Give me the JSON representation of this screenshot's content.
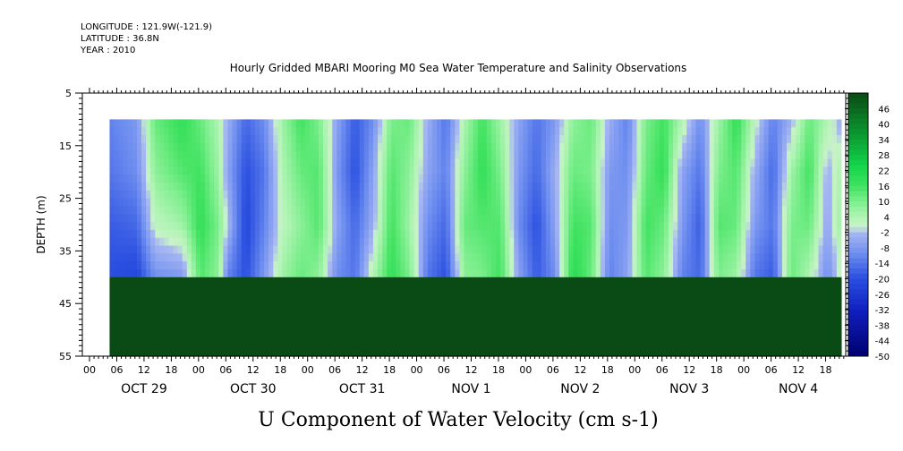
{
  "header": {
    "longitude": "LONGITUDE : 121.9W(-121.9)",
    "latitude": "LATITUDE : 36.8N",
    "year": "YEAR : 2010"
  },
  "chart_data": {
    "type": "heatmap",
    "title": "Hourly Gridded MBARI Mooring M0 Sea Water Temperature and Salinity Observations",
    "xlabel": "U Component of Water Velocity (cm s-1)",
    "ylabel": "DEPTH (m)",
    "ylim": [
      5,
      55
    ],
    "y_inverted": true,
    "y_ticks": [
      5,
      15,
      25,
      35,
      45,
      55
    ],
    "data_depth_range": [
      10,
      55
    ],
    "x_hour_labels": [
      "00",
      "06",
      "12",
      "18",
      "00",
      "06",
      "12",
      "18",
      "00",
      "06",
      "12",
      "18",
      "00",
      "06",
      "12",
      "18",
      "00",
      "06",
      "12",
      "18",
      "00",
      "06",
      "12",
      "18",
      "00",
      "06",
      "12",
      "18"
    ],
    "x_day_labels": [
      "OCT 29",
      "OCT 30",
      "OCT 31",
      "NOV 1",
      "NOV 2",
      "NOV 3",
      "NOV 4"
    ],
    "colorbar_labels": [
      "46",
      "40",
      "34",
      "28",
      "22",
      "16",
      "10",
      "4",
      "-2",
      "-8",
      "-14",
      "-20",
      "-26",
      "-32",
      "-38",
      "-44",
      "-50"
    ],
    "colorbar_range": [
      -50,
      52
    ],
    "colors": {
      "strong_negative": "#1f3fd8",
      "moderate_negative": "#6f8ff0",
      "weak_negative": "#a4b4f2",
      "weak_positive": "#aaf2b0",
      "moderate_positive": "#54ea74",
      "strong_positive": "#12d44a"
    },
    "x_start_hour": 6,
    "x_end_hour": 167,
    "u_profiles_by_hour": [
      [
        0,
        -12,
        -14,
        -18,
        -20
      ],
      [
        6,
        -8,
        -10,
        -16,
        -22
      ],
      [
        10,
        12,
        8,
        2,
        -10
      ],
      [
        16,
        18,
        14,
        6,
        -8
      ],
      [
        20,
        12,
        16,
        18,
        14
      ],
      [
        24,
        4,
        6,
        10,
        8
      ],
      [
        26,
        -4,
        -6,
        -2,
        -12
      ],
      [
        30,
        -16,
        -20,
        -22,
        -20
      ],
      [
        34,
        -10,
        -14,
        -12,
        -8
      ],
      [
        38,
        6,
        4,
        2,
        6
      ],
      [
        42,
        16,
        12,
        8,
        12
      ],
      [
        46,
        10,
        14,
        14,
        8
      ],
      [
        50,
        -6,
        -8,
        -6,
        -10
      ],
      [
        54,
        -18,
        -20,
        -16,
        -14
      ],
      [
        58,
        -10,
        -6,
        -4,
        4
      ],
      [
        62,
        10,
        14,
        16,
        18
      ],
      [
        66,
        12,
        8,
        6,
        10
      ],
      [
        70,
        -4,
        -6,
        -10,
        -14
      ],
      [
        74,
        -14,
        -12,
        -16,
        -20
      ],
      [
        78,
        4,
        8,
        12,
        8
      ],
      [
        82,
        16,
        18,
        14,
        10
      ],
      [
        86,
        6,
        10,
        14,
        16
      ],
      [
        90,
        -6,
        -8,
        -10,
        -6
      ],
      [
        94,
        -14,
        -16,
        -20,
        -18
      ],
      [
        98,
        -8,
        -4,
        -6,
        -10
      ],
      [
        102,
        8,
        12,
        16,
        20
      ],
      [
        106,
        12,
        10,
        14,
        12
      ],
      [
        110,
        -4,
        -8,
        -10,
        -12
      ],
      [
        114,
        -12,
        -10,
        -8,
        -6
      ],
      [
        118,
        10,
        12,
        16,
        14
      ],
      [
        122,
        16,
        18,
        12,
        8
      ],
      [
        126,
        4,
        -6,
        -8,
        -12
      ],
      [
        130,
        -10,
        -14,
        -18,
        -16
      ],
      [
        134,
        6,
        10,
        14,
        10
      ],
      [
        138,
        18,
        14,
        12,
        6
      ],
      [
        142,
        2,
        -4,
        -8,
        -14
      ],
      [
        146,
        -12,
        -16,
        -14,
        -18
      ],
      [
        150,
        -4,
        6,
        10,
        12
      ],
      [
        154,
        12,
        16,
        12,
        4
      ],
      [
        158,
        4,
        -4,
        -6,
        -10
      ],
      [
        162,
        -8,
        8,
        12,
        6
      ],
      [
        167,
        14,
        10,
        -6,
        -12
      ]
    ],
    "profile_depths": [
      10,
      20,
      30,
      40,
      55
    ]
  }
}
